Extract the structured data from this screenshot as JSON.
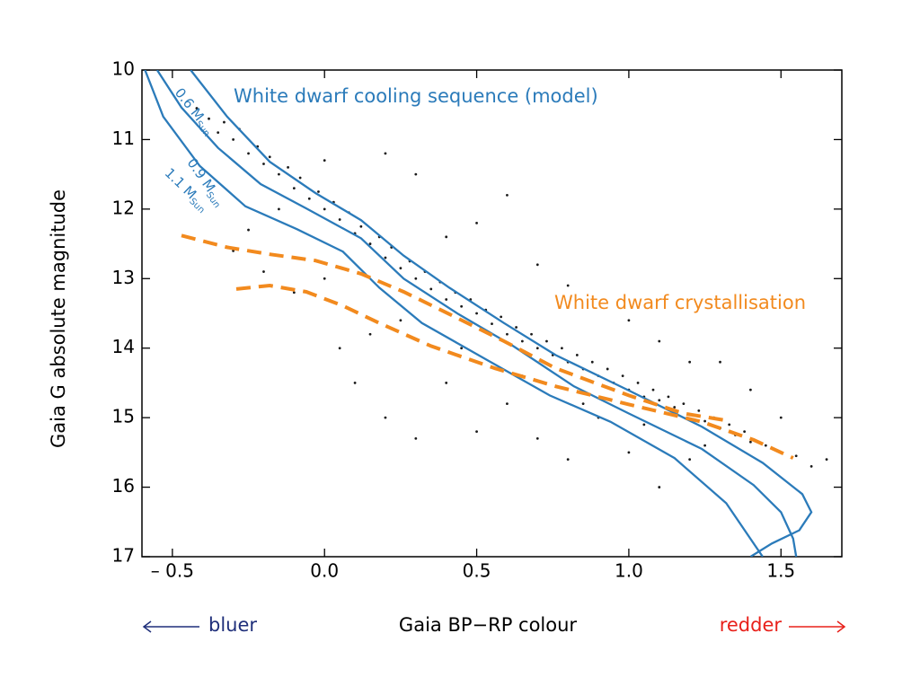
{
  "chart_data": {
    "type": "scatter",
    "xlabel": "Gaia BP−RP colour",
    "ylabel": "Gaia G absolute magnitude",
    "xlim": [
      -0.6,
      1.7
    ],
    "ylim": [
      10,
      17
    ],
    "y_inverted": true,
    "xticks": [
      {
        "value": -0.5,
        "label": "– 0.5"
      },
      {
        "value": 0,
        "label": "0.0"
      },
      0.5,
      {
        "value": 1,
        "label": "1.0"
      },
      1.5
    ],
    "yticks": [
      10,
      11,
      12,
      13,
      14,
      15,
      16,
      17
    ],
    "points": {
      "color": "#1a1a1a",
      "x": [
        -0.42,
        -0.38,
        -0.35,
        -0.33,
        -0.3,
        -0.28,
        -0.25,
        -0.22,
        -0.2,
        -0.18,
        -0.15,
        -0.12,
        -0.1,
        -0.08,
        -0.05,
        -0.02,
        0.0,
        0.03,
        0.05,
        0.08,
        0.1,
        0.12,
        0.15,
        0.18,
        0.2,
        0.22,
        0.25,
        0.28,
        0.3,
        0.33,
        0.35,
        0.38,
        0.4,
        0.43,
        0.45,
        0.48,
        0.5,
        0.53,
        0.55,
        0.58,
        0.6,
        0.63,
        0.65,
        0.68,
        0.7,
        0.73,
        0.75,
        0.78,
        0.8,
        0.83,
        0.85,
        0.88,
        0.9,
        0.93,
        0.95,
        0.98,
        1.0,
        1.03,
        1.05,
        1.08,
        1.1,
        1.13,
        1.15,
        1.18,
        1.2,
        1.23,
        1.25,
        1.28,
        1.3,
        1.33,
        1.35,
        1.38,
        1.4,
        1.45,
        1.5,
        1.55,
        1.6,
        1.65,
        -0.3,
        -0.2,
        -0.1,
        0.0,
        0.05,
        0.1,
        0.2,
        0.3,
        0.15,
        0.4,
        0.5,
        0.6,
        0.7,
        0.8,
        0.9,
        1.0,
        1.1,
        1.2,
        0.3,
        0.5,
        0.6,
        0.7,
        0.8,
        1.0,
        1.1,
        1.3,
        1.4,
        1.5,
        1.2,
        0.2,
        0.0,
        0.4,
        -0.25,
        -0.15,
        0.25,
        0.45,
        0.65,
        0.85,
        1.05,
        1.25
      ],
      "y": [
        10.55,
        10.7,
        10.9,
        10.75,
        11.0,
        10.85,
        11.2,
        11.1,
        11.35,
        11.25,
        11.5,
        11.4,
        11.7,
        11.55,
        11.85,
        11.75,
        12.0,
        11.9,
        12.15,
        12.05,
        12.35,
        12.25,
        12.5,
        12.4,
        12.7,
        12.55,
        12.85,
        12.75,
        13.0,
        12.9,
        13.15,
        13.05,
        13.3,
        13.2,
        13.4,
        13.3,
        13.5,
        13.45,
        13.65,
        13.55,
        13.8,
        13.7,
        13.9,
        13.8,
        14.0,
        13.9,
        14.1,
        14.0,
        14.2,
        14.1,
        14.3,
        14.2,
        14.4,
        14.3,
        14.5,
        14.4,
        14.6,
        14.5,
        14.7,
        14.6,
        14.75,
        14.7,
        14.85,
        14.8,
        14.95,
        14.9,
        15.05,
        15.0,
        15.15,
        15.1,
        15.25,
        15.2,
        15.35,
        15.4,
        15.5,
        15.55,
        15.7,
        15.6,
        12.6,
        12.9,
        13.2,
        13.0,
        14.0,
        14.5,
        15.0,
        15.3,
        13.8,
        14.5,
        15.2,
        14.8,
        15.3,
        15.6,
        15.0,
        15.5,
        16.0,
        15.6,
        11.5,
        12.2,
        11.8,
        12.8,
        13.1,
        13.6,
        13.9,
        14.2,
        14.6,
        15.0,
        14.2,
        11.2,
        11.3,
        12.4,
        12.3,
        12.0,
        13.6,
        14.0,
        14.4,
        14.8,
        15.1,
        15.4
      ]
    },
    "lines": [
      {
        "label": "0.6 M",
        "label_sub": "Sun",
        "color": "#2b7bba",
        "dashed": false,
        "x": [
          -0.44,
          -0.32,
          -0.18,
          -0.03,
          0.12,
          0.26,
          0.41,
          0.59,
          0.76,
          1.0,
          1.24,
          1.44,
          1.57,
          1.6,
          1.56,
          1.47,
          1.4
        ],
        "y": [
          10.0,
          10.67,
          11.32,
          11.77,
          12.16,
          12.67,
          13.13,
          13.64,
          14.1,
          14.61,
          15.13,
          15.65,
          16.1,
          16.36,
          16.62,
          16.81,
          17.0
        ]
      },
      {
        "label": "0.9 M",
        "label_sub": "Sun",
        "color": "#2b7bba",
        "dashed": false,
        "x": [
          -0.55,
          -0.47,
          -0.35,
          -0.21,
          -0.06,
          0.12,
          0.26,
          0.44,
          0.62,
          0.82,
          1.0,
          1.24,
          1.41,
          1.5,
          1.54,
          1.55
        ],
        "y": [
          10.0,
          10.54,
          11.12,
          11.64,
          11.99,
          12.42,
          13.0,
          13.51,
          13.97,
          14.55,
          14.94,
          15.45,
          15.97,
          16.36,
          16.74,
          17.0
        ]
      },
      {
        "label": "1.1 M",
        "label_sub": "Sun",
        "color": "#2b7bba",
        "dashed": false,
        "x": [
          -0.59,
          -0.53,
          -0.41,
          -0.26,
          -0.09,
          0.06,
          0.18,
          0.32,
          0.53,
          0.74,
          0.94,
          1.15,
          1.32,
          1.44
        ],
        "y": [
          10.0,
          10.67,
          11.38,
          11.96,
          12.29,
          12.61,
          13.13,
          13.64,
          14.16,
          14.68,
          15.06,
          15.58,
          16.23,
          17.0
        ]
      },
      {
        "color": "#f28a1e",
        "dashed": true,
        "x": [
          -0.47,
          -0.32,
          -0.18,
          -0.03,
          0.12,
          0.26,
          0.41,
          0.59,
          0.76,
          1.0,
          1.18,
          1.32
        ],
        "y": [
          12.38,
          12.55,
          12.65,
          12.74,
          12.93,
          13.19,
          13.51,
          13.9,
          14.29,
          14.68,
          14.94,
          15.04
        ]
      },
      {
        "color": "#f28a1e",
        "dashed": true,
        "x": [
          -0.29,
          -0.18,
          -0.06,
          0.06,
          0.18,
          0.35,
          0.56,
          0.76,
          1.0,
          1.24,
          1.41,
          1.54
        ],
        "y": [
          13.15,
          13.1,
          13.19,
          13.39,
          13.64,
          13.97,
          14.29,
          14.55,
          14.81,
          15.06,
          15.32,
          15.58
        ]
      }
    ],
    "annotations": [
      {
        "text": "White dwarf cooling sequence (model)",
        "color": "#2b7bba"
      },
      {
        "text": "White dwarf crystallisation",
        "color": "#f28a1e"
      }
    ],
    "direction_labels": [
      {
        "text": "bluer",
        "color": "#1f2f7a"
      },
      {
        "text": "redder",
        "color": "#e8201a"
      }
    ]
  }
}
